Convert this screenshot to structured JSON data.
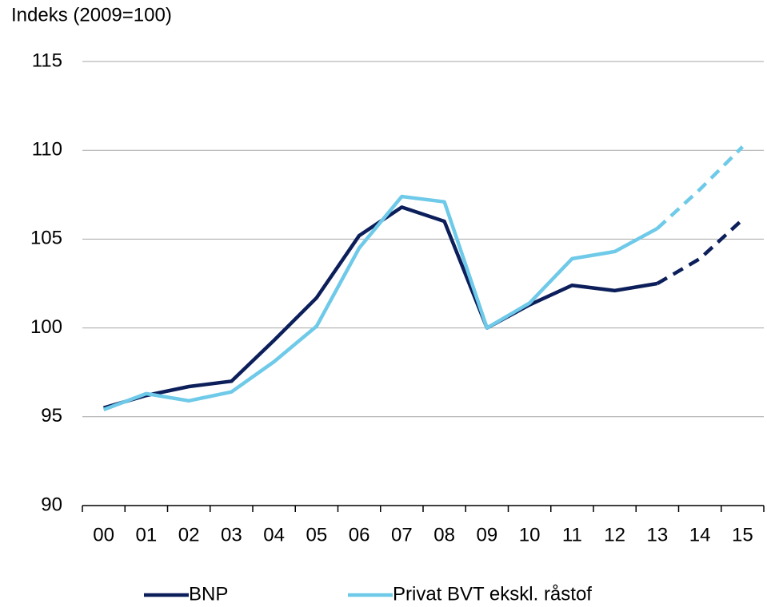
{
  "chart_data": {
    "type": "line",
    "y_label": "Indeks (2009=100)",
    "categories": [
      "00",
      "01",
      "02",
      "03",
      "04",
      "05",
      "06",
      "07",
      "08",
      "09",
      "10",
      "11",
      "12",
      "13",
      "14",
      "15"
    ],
    "series": [
      {
        "name": "BNP",
        "color": "#0c1f5b",
        "values": [
          95.5,
          96.2,
          96.7,
          97.0,
          99.3,
          101.7,
          105.2,
          106.8,
          106.0,
          100,
          101.3,
          102.4,
          102.1,
          102.5,
          103.9,
          106.1
        ]
      },
      {
        "name": "Privat BVT ekskl. råstof",
        "color": "#6ecae8",
        "values": [
          95.4,
          96.3,
          95.9,
          96.4,
          98.1,
          100.1,
          104.5,
          107.4,
          107.1,
          100,
          101.4,
          103.9,
          104.3,
          105.6,
          107.8,
          110.2
        ]
      }
    ],
    "dashed_from": "13",
    "ylim": [
      90,
      115
    ],
    "yticks": [
      90,
      95,
      100,
      105,
      110,
      115
    ],
    "grid": true,
    "legend": "bottom"
  }
}
